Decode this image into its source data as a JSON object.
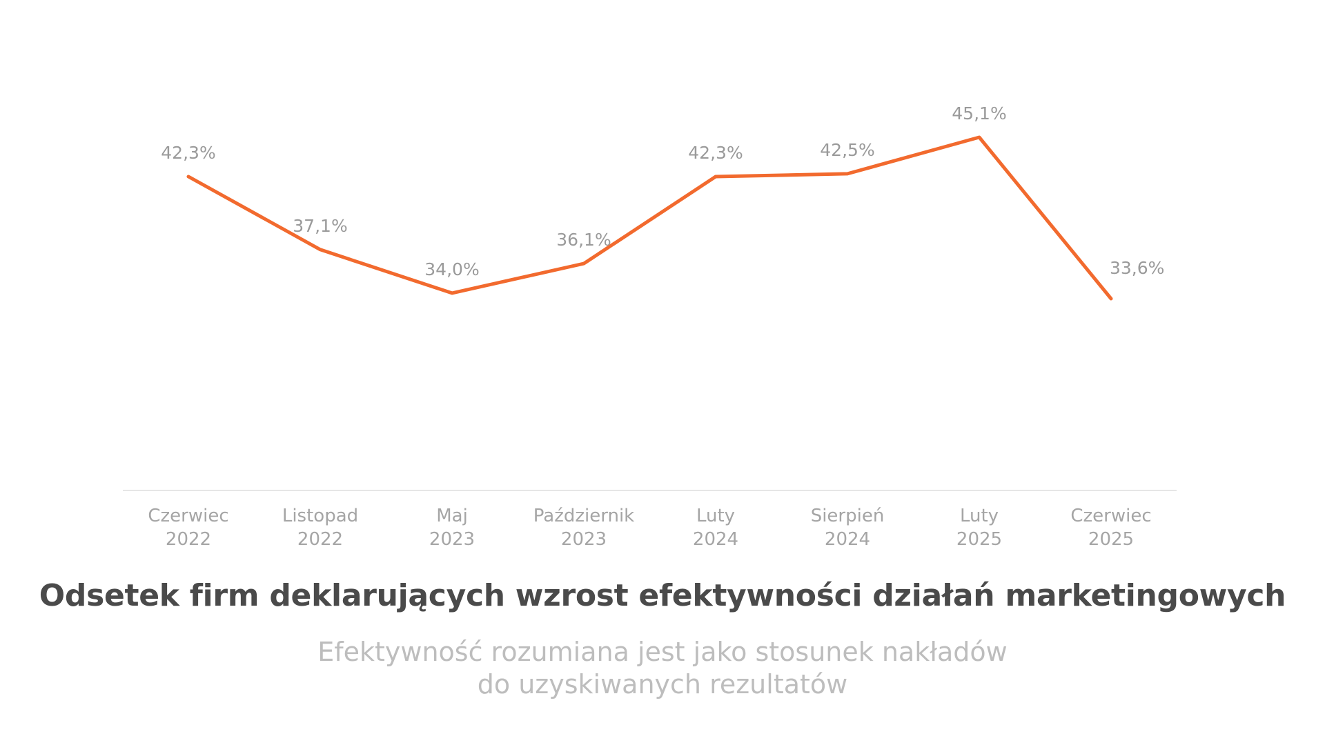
{
  "chart_data": {
    "type": "line",
    "title": "Odsetek firm deklarujących wzrost efektywności działań marketingowych",
    "subtitle_lines": [
      "Efektywność rozumiana jest jako stosunek nakładów",
      "do uzyskiwanych rezultatów"
    ],
    "categories": [
      [
        "Czerwiec",
        "2022"
      ],
      [
        "Listopad",
        "2022"
      ],
      [
        "Maj",
        "2023"
      ],
      [
        "Październik",
        "2023"
      ],
      [
        "Luty",
        "2024"
      ],
      [
        "Sierpień",
        "2024"
      ],
      [
        "Luty",
        "2025"
      ],
      [
        "Czerwiec",
        "2025"
      ]
    ],
    "values": [
      42.3,
      37.1,
      34.0,
      36.1,
      42.3,
      42.5,
      45.1,
      33.6
    ],
    "value_labels": [
      "42,3%",
      "37,1%",
      "34,0%",
      "36,1%",
      "42,3%",
      "42,5%",
      "45,1%",
      "33,6%"
    ],
    "ylim": [
      20,
      47
    ],
    "grid": false,
    "line_color": "#f26a2e",
    "axis_color": "#e6e6e6"
  }
}
